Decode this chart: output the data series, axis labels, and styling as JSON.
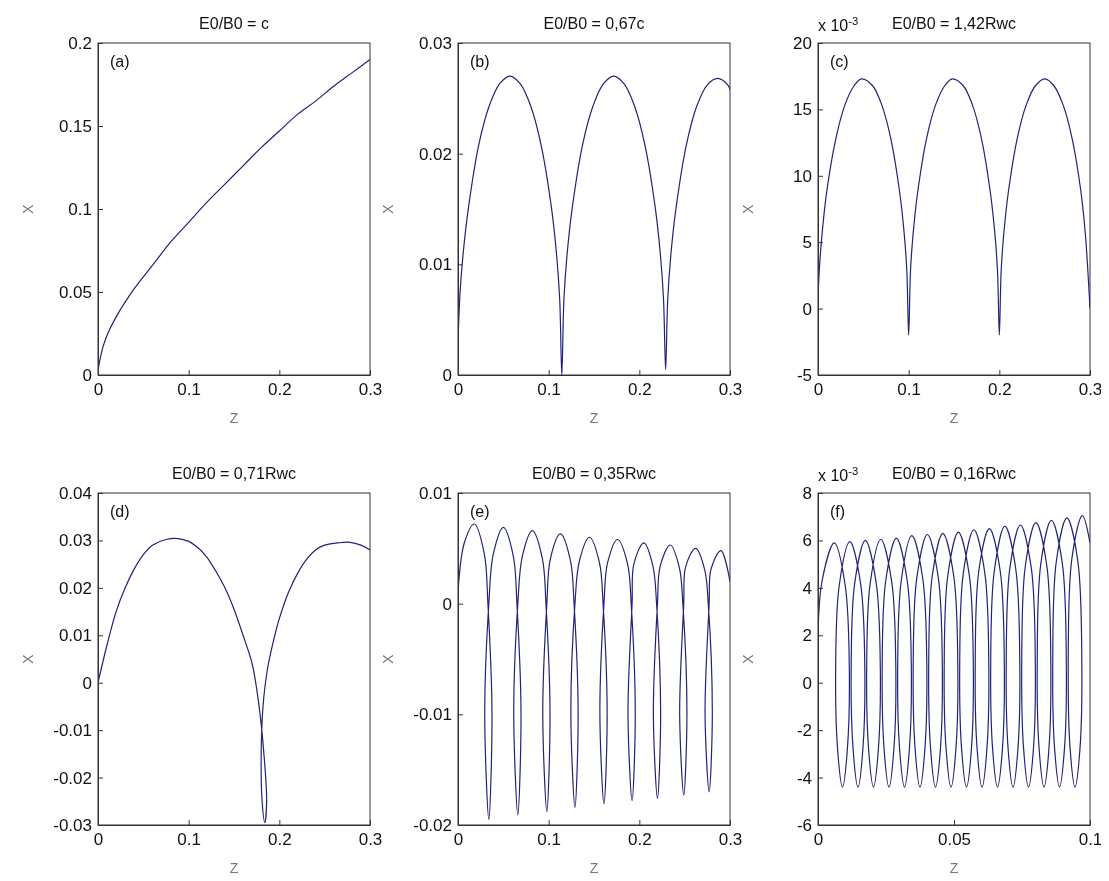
{
  "chart_data": [
    {
      "type": "line",
      "title": "E0/B0 = c",
      "xlabel": "Z",
      "ylabel": "X",
      "annotations": [
        "(a)"
      ],
      "xlim": [
        0,
        0.3
      ],
      "ylim": [
        0,
        0.2
      ],
      "xticks": [
        0,
        0.1,
        0.2,
        0.3
      ],
      "yticks": [
        0,
        0.05,
        0.1,
        0.15,
        0.2
      ],
      "x": [
        0,
        0.005,
        0.01,
        0.02,
        0.04,
        0.06,
        0.08,
        0.1,
        0.12,
        0.14,
        0.16,
        0.18,
        0.2,
        0.22,
        0.24,
        0.26,
        0.28,
        0.3
      ],
      "series": [
        {
          "color": "#22227a",
          "values": [
            0.003,
            0.016,
            0.024,
            0.035,
            0.052,
            0.066,
            0.08,
            0.092,
            0.104,
            0.115,
            0.126,
            0.137,
            0.147,
            0.157,
            0.165,
            0.174,
            0.182,
            0.19
          ]
        }
      ]
    },
    {
      "type": "line",
      "title": "E0/B0 = 0,67c",
      "xlabel": "Z",
      "ylabel": "X",
      "annotations": [
        "(b)"
      ],
      "xlim": [
        0,
        0.3
      ],
      "ylim": [
        0,
        0.03
      ],
      "xticks": [
        0,
        0.1,
        0.2,
        0.3
      ],
      "yticks": [
        0,
        0.01,
        0.02,
        0.03
      ],
      "x": [
        0,
        0.0023,
        0.0057,
        0.0115,
        0.0229,
        0.0344,
        0.0458,
        0.0573,
        0.0687,
        0.0802,
        0.0916,
        0.1031,
        0.1088,
        0.1122,
        0.1145,
        0.1168,
        0.1202,
        0.126,
        0.1374,
        0.1489,
        0.1603,
        0.1718,
        0.1832,
        0.1947,
        0.2061,
        0.2176,
        0.2233,
        0.2267,
        0.229,
        0.2313,
        0.2347,
        0.2405,
        0.2519,
        0.2634,
        0.2748,
        0.2863,
        0.2977,
        0.3
      ],
      "series": [
        {
          "color": "#22227a",
          "values": [
            0.003,
            0.0075,
            0.011,
            0.0151,
            0.0208,
            0.0243,
            0.0263,
            0.027,
            0.0263,
            0.0243,
            0.0208,
            0.0151,
            0.0108,
            0.0068,
            0,
            0.0068,
            0.0108,
            0.0151,
            0.0208,
            0.0243,
            0.0263,
            0.027,
            0.0263,
            0.0243,
            0.0208,
            0.0151,
            0.0108,
            0.0068,
            0.0005,
            0.0068,
            0.0108,
            0.0151,
            0.0208,
            0.0243,
            0.0262,
            0.0268,
            0.0262,
            0.0258
          ]
        }
      ]
    },
    {
      "type": "line",
      "title": "E0/B0 = 1,42Rwc",
      "xlabel": "Z",
      "ylabel": "X",
      "annotations": [
        "(c)",
        "x 10$^{-3}$"
      ],
      "xlim": [
        0,
        0.3
      ],
      "ylim": [
        -5,
        20
      ],
      "xticks": [
        0,
        0.1,
        0.2,
        0.3
      ],
      "yticks": [
        -5,
        0,
        5,
        10,
        15,
        20
      ],
      "x": [
        0,
        0.002,
        0.005,
        0.01,
        0.02,
        0.03,
        0.04,
        0.048,
        0.06,
        0.07,
        0.08,
        0.09,
        0.095,
        0.098,
        0.1,
        0.102,
        0.105,
        0.11,
        0.12,
        0.13,
        0.14,
        0.148,
        0.16,
        0.17,
        0.18,
        0.19,
        0.195,
        0.198,
        0.2,
        0.202,
        0.205,
        0.21,
        0.22,
        0.23,
        0.24,
        0.25,
        0.26,
        0.27,
        0.28,
        0.29,
        0.295,
        0.3
      ],
      "series": [
        {
          "color": "#22227a",
          "values": [
            1,
            3.5,
            6,
            9,
            12.9,
            15.4,
            16.8,
            17.3,
            16.8,
            15.4,
            12.9,
            8.8,
            5.7,
            2.8,
            -2,
            2.8,
            5.7,
            8.8,
            12.9,
            15.4,
            16.8,
            17.3,
            16.8,
            15.4,
            12.9,
            8.8,
            5.7,
            2.8,
            -2,
            2.8,
            5.7,
            8.8,
            12.9,
            15.4,
            16.8,
            17.3,
            16.8,
            15.4,
            12.9,
            8.8,
            5.5,
            0
          ]
        }
      ]
    },
    {
      "type": "line",
      "title": "E0/B0 = 0,71Rwc",
      "xlabel": "Z",
      "ylabel": "X",
      "annotations": [
        "(d)"
      ],
      "xlim": [
        0,
        0.3
      ],
      "ylim": [
        -0.03,
        0.04
      ],
      "xticks": [
        0,
        0.1,
        0.2,
        0.3
      ],
      "yticks": [
        -0.03,
        -0.02,
        -0.01,
        0,
        0.01,
        0.02,
        0.03,
        0.04
      ],
      "x": [
        0,
        0.01,
        0.02,
        0.03,
        0.04,
        0.05,
        0.06,
        0.075,
        0.088,
        0.1,
        0.11,
        0.12,
        0.13,
        0.14,
        0.15,
        0.16,
        0.17,
        0.177,
        0.183,
        0.186,
        0.184,
        0.181,
        0.18,
        0.182,
        0.187,
        0.195,
        0.2,
        0.21,
        0.22,
        0.23,
        0.24,
        0.25,
        0.265,
        0.278,
        0.29,
        0.3
      ],
      "series": [
        {
          "color": "#22227a",
          "values": [
            0,
            0.008,
            0.015,
            0.02,
            0.024,
            0.027,
            0.029,
            0.0302,
            0.0304,
            0.0298,
            0.0285,
            0.0265,
            0.0235,
            0.02,
            0.0155,
            0.01,
            0.004,
            -0.004,
            -0.015,
            -0.025,
            -0.0295,
            -0.025,
            -0.015,
            -0.005,
            0.003,
            0.01,
            0.0135,
            0.019,
            0.023,
            0.026,
            0.028,
            0.029,
            0.0295,
            0.0296,
            0.029,
            0.028
          ]
        }
      ]
    },
    {
      "type": "line",
      "title": "E0/B0 = 0,35Rwc",
      "xlabel": "Z",
      "ylabel": "X",
      "annotations": [
        "(e)"
      ],
      "xlim": [
        0,
        0.3
      ],
      "ylim": [
        -0.02,
        0.01
      ],
      "xticks": [
        0,
        0.1,
        0.2,
        0.3
      ],
      "yticks": [
        -0.02,
        -0.01,
        0,
        0.01
      ],
      "x": [
        0,
        0.007,
        0.018,
        0.029,
        0.033,
        0.0375,
        0.034,
        0.0295,
        0.034,
        0.039,
        0.05,
        0.061,
        0.065,
        0.0695,
        0.066,
        0.0615,
        0.066,
        0.071,
        0.082,
        0.093,
        0.097,
        0.1015,
        0.098,
        0.0935,
        0.098,
        0.102,
        0.113,
        0.124,
        0.128,
        0.1325,
        0.129,
        0.1245,
        0.129,
        0.134,
        0.145,
        0.156,
        0.16,
        0.1645,
        0.161,
        0.1565,
        0.161,
        0.165,
        0.176,
        0.187,
        0.191,
        0.1955,
        0.192,
        0.1875,
        0.192,
        0.194,
        0.205,
        0.215,
        0.219,
        0.2235,
        0.22,
        0.2155,
        0.22,
        0.223,
        0.234,
        0.244,
        0.248,
        0.2525,
        0.249,
        0.2445,
        0.249,
        0.251,
        0.262,
        0.272,
        0.276,
        0.2805,
        0.277,
        0.2725,
        0.277,
        0.279,
        0.29,
        0.3
      ],
      "series": [
        {
          "color": "#22227a",
          "values": [
            0.001,
            0.0055,
            0.0072,
            0.0045,
            0,
            -0.01,
            -0.0195,
            -0.01,
            0,
            0.0045,
            0.0069,
            0.0043,
            0,
            -0.01,
            -0.0191,
            -0.01,
            0,
            0.0043,
            0.0066,
            0.0041,
            0,
            -0.01,
            -0.0188,
            -0.01,
            0,
            0.0041,
            0.0063,
            0.0039,
            0,
            -0.01,
            -0.0184,
            -0.01,
            0,
            0.0039,
            0.006,
            0.0037,
            0,
            -0.01,
            -0.0181,
            -0.01,
            0,
            0.0037,
            0.0058,
            0.0036,
            0,
            -0.01,
            -0.0178,
            -0.01,
            0,
            0.0036,
            0.0055,
            0.0034,
            0,
            -0.01,
            -0.0176,
            -0.01,
            0,
            0.0034,
            0.0053,
            0.0033,
            0,
            -0.01,
            -0.0173,
            -0.01,
            0,
            0.0033,
            0.005,
            0.0031,
            0,
            -0.01,
            -0.017,
            -0.01,
            0,
            0.0031,
            0.0048,
            0.002
          ]
        }
      ]
    },
    {
      "type": "line",
      "title": "E0/B0 = 0,16Rwc",
      "xlabel": "Z",
      "ylabel": "X",
      "annotations": [
        "(f)",
        "x 10$^{-3}$"
      ],
      "xlim": [
        0,
        0.1
      ],
      "ylim": [
        -6,
        8
      ],
      "xticks": [
        0,
        0.05,
        0.1
      ],
      "yticks": [
        -6,
        -4,
        -2,
        0,
        2,
        4,
        6,
        8
      ],
      "x": [
        0,
        0.0015,
        0.006,
        0.01,
        0.0115,
        0.0108,
        0.009,
        0.0072,
        0.0065,
        0.0078,
        0.0117,
        0.0157,
        0.0172,
        0.0165,
        0.0147,
        0.0129,
        0.0122,
        0.0135,
        0.0174,
        0.0214,
        0.0229,
        0.0222,
        0.0204,
        0.0186,
        0.0179,
        0.0192,
        0.0231,
        0.0271,
        0.0286,
        0.0279,
        0.0261,
        0.0243,
        0.0236,
        0.0249,
        0.0288,
        0.0328,
        0.0343,
        0.0336,
        0.0318,
        0.03,
        0.0293,
        0.0306,
        0.0345,
        0.0385,
        0.04,
        0.0393,
        0.0375,
        0.0357,
        0.035,
        0.0363,
        0.0402,
        0.0442,
        0.0457,
        0.045,
        0.0432,
        0.0414,
        0.0407,
        0.042,
        0.0459,
        0.0499,
        0.0514,
        0.0507,
        0.0489,
        0.0471,
        0.0464,
        0.0477,
        0.0516,
        0.0556,
        0.0571,
        0.0564,
        0.0546,
        0.0528,
        0.0521,
        0.0534,
        0.0573,
        0.0613,
        0.0628,
        0.0621,
        0.0603,
        0.0585,
        0.0578,
        0.0591,
        0.063,
        0.067,
        0.0685,
        0.0678,
        0.066,
        0.0642,
        0.0635,
        0.0648,
        0.0687,
        0.0727,
        0.0742,
        0.0735,
        0.0717,
        0.0699,
        0.0692,
        0.0705,
        0.0744,
        0.0784,
        0.0799,
        0.0792,
        0.0774,
        0.0756,
        0.0749,
        0.0762,
        0.0801,
        0.0841,
        0.0856,
        0.0849,
        0.0831,
        0.0813,
        0.0806,
        0.0819,
        0.0858,
        0.0898,
        0.0913,
        0.0906,
        0.0888,
        0.087,
        0.0863,
        0.0876,
        0.0915,
        0.0955,
        0.097,
        0.0963,
        0.0945,
        0.0927,
        0.092,
        0.0933,
        0.0972,
        0.1
      ],
      "series": [
        {
          "color": "#22227a",
          "values": [
            2,
            4.3,
            5.9,
            4.1,
            0.7,
            -2.8,
            -4.4,
            -2.8,
            0.7,
            4.1,
            5.95,
            4.15,
            0.7,
            -2.8,
            -4.4,
            -2.8,
            0.7,
            4.2,
            6,
            4.2,
            0.7,
            -2.8,
            -4.4,
            -2.8,
            0.7,
            4.2,
            6.05,
            4.25,
            0.7,
            -2.8,
            -4.4,
            -2.8,
            0.7,
            4.3,
            6.1,
            4.3,
            0.7,
            -2.8,
            -4.4,
            -2.8,
            0.7,
            4.3,
            6.2,
            4.4,
            0.7,
            -2.8,
            -4.4,
            -2.8,
            0.7,
            4.4,
            6.25,
            4.45,
            0.7,
            -2.8,
            -4.4,
            -2.8,
            0.7,
            4.5,
            6.3,
            4.5,
            0.7,
            -2.8,
            -4.4,
            -2.8,
            0.7,
            4.5,
            6.35,
            4.55,
            0.7,
            -2.8,
            -4.4,
            -2.8,
            0.7,
            4.6,
            6.45,
            4.65,
            0.7,
            -2.8,
            -4.4,
            -2.8,
            0.7,
            4.7,
            6.5,
            4.7,
            0.7,
            -2.8,
            -4.4,
            -2.8,
            0.7,
            4.7,
            6.6,
            4.8,
            0.7,
            -2.8,
            -4.4,
            -2.8,
            0.7,
            4.8,
            6.65,
            4.85,
            0.7,
            -2.8,
            -4.4,
            -2.8,
            0.7,
            4.9,
            6.75,
            4.95,
            0.7,
            -2.8,
            -4.4,
            -2.8,
            0.7,
            5,
            6.85,
            5.05,
            0.7,
            -2.8,
            -4.4,
            -2.8,
            0.7,
            5.1,
            6.95,
            5.15,
            0.7,
            -2.8,
            -4.4,
            -2.8,
            0.7,
            5.2,
            7.05,
            5.9
          ]
        }
      ]
    }
  ]
}
